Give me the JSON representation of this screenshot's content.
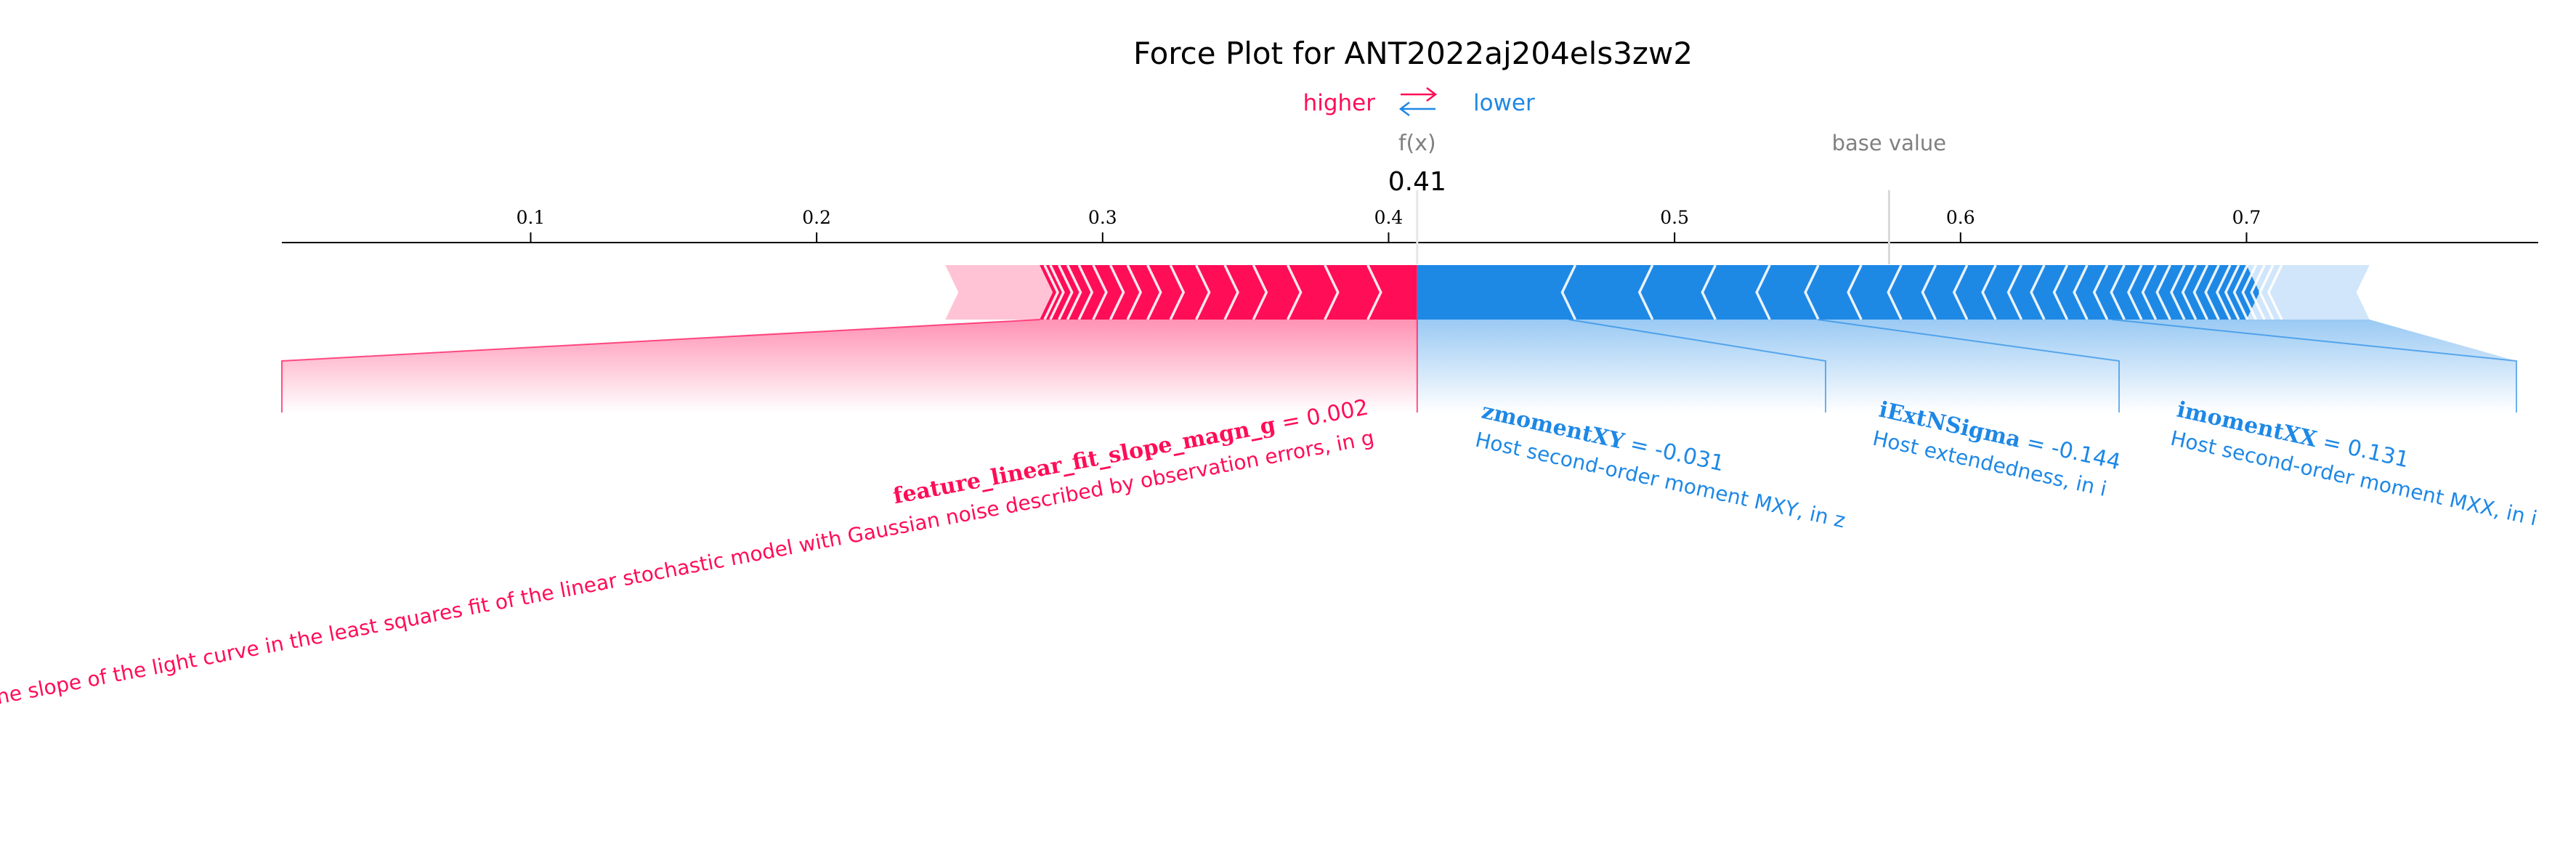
{
  "chart_data": {
    "type": "force",
    "title": "Force Plot for ANT2022aj204els3zw2",
    "legend": {
      "higher": "higher",
      "lower": "lower",
      "placement": "top-center"
    },
    "fx_label": "f(x)",
    "fx_value": 0.41,
    "fx_value_label": "0.41",
    "base_value_label": "base value",
    "base_value": 0.575,
    "xlim": [
      0.013,
      0.802
    ],
    "ticks": [
      {
        "value": 0.1,
        "label": "0.1"
      },
      {
        "value": 0.2,
        "label": "0.2"
      },
      {
        "value": 0.3,
        "label": "0.3"
      },
      {
        "value": 0.4,
        "label": "0.4"
      },
      {
        "value": 0.5,
        "label": "0.5"
      },
      {
        "value": 0.6,
        "label": "0.6"
      },
      {
        "value": 0.7,
        "label": "0.7"
      }
    ],
    "positive_range": [
      0.245,
      0.41
    ],
    "negative_range": [
      0.41,
      0.743
    ],
    "features": [
      {
        "name": "feature_linear_fit_slope_magn_g",
        "eq": " = 0.002",
        "desc": "The slope of the light curve in the least squares fit of the linear stochastic model with Gaussian noise described by observation errors, in g",
        "effect": "higher",
        "segment": [
          0.013,
          0.41
        ]
      },
      {
        "name": "zmomentXY",
        "eq": " = -0.031",
        "desc": "Host second-order moment MXY, in z",
        "effect": "lower",
        "segment": [
          0.41,
          0.463
        ]
      },
      {
        "name": "iExtNSigma",
        "eq": " = -0.144",
        "desc": "Host extendedness, in i",
        "effect": "lower",
        "segment": [
          0.463,
          0.55
        ]
      },
      {
        "name": "imomentXX",
        "eq": " = 0.131",
        "desc": "Host second-order moment MXX, in i",
        "effect": "lower",
        "segment": [
          0.55,
          0.653
        ]
      }
    ],
    "colors": {
      "higher": "#ff0d57",
      "higher_light": "#ffc3d5",
      "lower": "#1e88e5",
      "lower_light": "#d1e6fa",
      "axis": "#000000",
      "muted": "#808080"
    }
  }
}
